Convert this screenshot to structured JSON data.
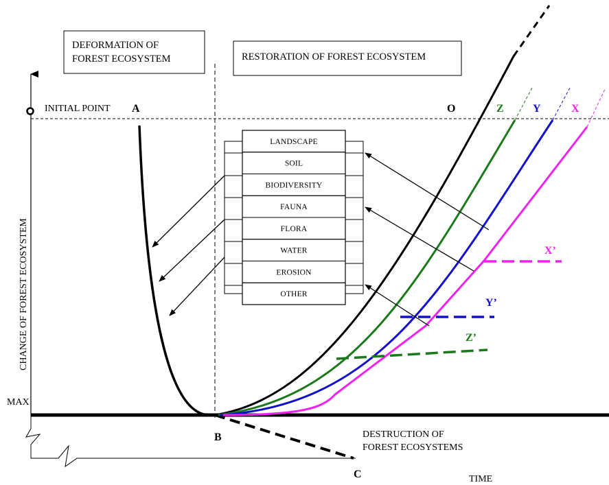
{
  "boxes": {
    "deformation": [
      "DEFORMATION OF",
      "FOREST ECOSYSTEM"
    ],
    "restoration": "RESTORATION OF FOREST ECOSYSTEM"
  },
  "axis": {
    "y_label": "CHANGE OF FOREST ECOSYSTEM",
    "x_label": "TIME",
    "initial_point": "INITIAL POINT",
    "max_label": "MAX"
  },
  "points": {
    "A": "A",
    "B": "B",
    "C": "C",
    "O": "O",
    "Z": "Z",
    "Y": "Y",
    "X": "X",
    "Xp": "X’",
    "Yp": "Y’",
    "Zp": "Z’"
  },
  "destruction": [
    "DESTRUCTION OF",
    "FOREST ECOSYSTEMS"
  ],
  "factors": [
    "LANDSCAPE",
    "SOIL",
    "BIODIVERSITY",
    "FAUNA",
    "FLORA",
    "WATER",
    "EROSION",
    "OTHER"
  ],
  "colors": {
    "ink": "#000000",
    "Z": "#1a7a1a",
    "Y": "#1111cc",
    "X": "#ee22ee"
  }
}
